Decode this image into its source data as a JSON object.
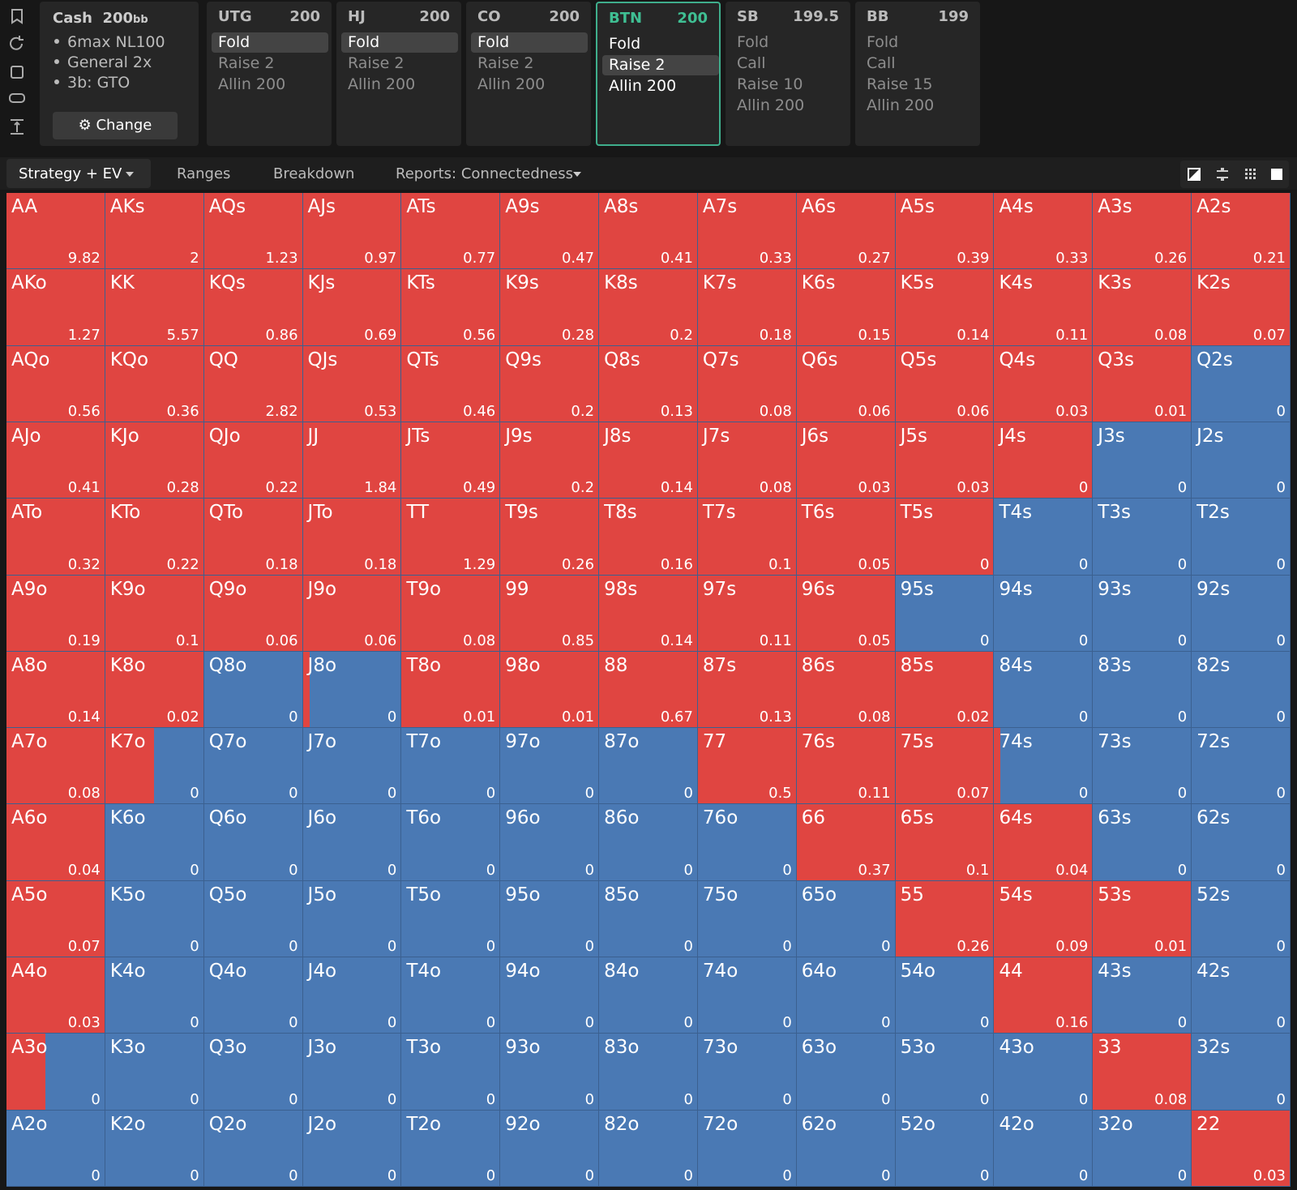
{
  "sidebar": {
    "title": "Cash",
    "stack": 200,
    "unit": "bb",
    "bullets": [
      "6max NL100",
      "General 2x",
      "3b: GTO"
    ],
    "button": "Change"
  },
  "positions": [
    {
      "name": "UTG",
      "stack": 200,
      "actions": [
        "Fold",
        "Raise 2",
        "Allin 200"
      ],
      "selected": 0
    },
    {
      "name": "HJ",
      "stack": 200,
      "actions": [
        "Fold",
        "Raise 2",
        "Allin 200"
      ],
      "selected": 0
    },
    {
      "name": "CO",
      "stack": 200,
      "actions": [
        "Fold",
        "Raise 2",
        "Allin 200"
      ],
      "selected": 0
    },
    {
      "name": "BTN",
      "stack": 200,
      "actions": [
        "Fold",
        "Raise 2",
        "Allin 200"
      ],
      "selected": 1,
      "active": true
    },
    {
      "name": "SB",
      "stack": 199.5,
      "actions": [
        "Fold",
        "Call",
        "Raise 10",
        "Allin 200"
      ]
    },
    {
      "name": "BB",
      "stack": 199,
      "actions": [
        "Fold",
        "Call",
        "Raise 15",
        "Allin 200"
      ]
    }
  ],
  "tabs": {
    "items": [
      "Strategy + EV",
      "Ranges",
      "Breakdown",
      "Reports: Connectedness"
    ],
    "active": 0
  },
  "grid": {
    "colors": {
      "raise": "#e04541",
      "fold": "#4a79b4"
    },
    "rows": [
      [
        {
          "hand": "AA",
          "ev": 9.82,
          "raise": 1
        },
        {
          "hand": "AKs",
          "ev": 2,
          "raise": 1
        },
        {
          "hand": "AQs",
          "ev": 1.23,
          "raise": 1
        },
        {
          "hand": "AJs",
          "ev": 0.97,
          "raise": 1
        },
        {
          "hand": "ATs",
          "ev": 0.77,
          "raise": 1
        },
        {
          "hand": "A9s",
          "ev": 0.47,
          "raise": 1
        },
        {
          "hand": "A8s",
          "ev": 0.41,
          "raise": 1
        },
        {
          "hand": "A7s",
          "ev": 0.33,
          "raise": 1
        },
        {
          "hand": "A6s",
          "ev": 0.27,
          "raise": 1
        },
        {
          "hand": "A5s",
          "ev": 0.39,
          "raise": 1
        },
        {
          "hand": "A4s",
          "ev": 0.33,
          "raise": 1
        },
        {
          "hand": "A3s",
          "ev": 0.26,
          "raise": 1
        },
        {
          "hand": "A2s",
          "ev": 0.21,
          "raise": 1
        }
      ],
      [
        {
          "hand": "AKo",
          "ev": 1.27,
          "raise": 1
        },
        {
          "hand": "KK",
          "ev": 5.57,
          "raise": 1
        },
        {
          "hand": "KQs",
          "ev": 0.86,
          "raise": 1
        },
        {
          "hand": "KJs",
          "ev": 0.69,
          "raise": 1
        },
        {
          "hand": "KTs",
          "ev": 0.56,
          "raise": 1
        },
        {
          "hand": "K9s",
          "ev": 0.28,
          "raise": 1
        },
        {
          "hand": "K8s",
          "ev": 0.2,
          "raise": 1
        },
        {
          "hand": "K7s",
          "ev": 0.18,
          "raise": 1
        },
        {
          "hand": "K6s",
          "ev": 0.15,
          "raise": 1
        },
        {
          "hand": "K5s",
          "ev": 0.14,
          "raise": 1
        },
        {
          "hand": "K4s",
          "ev": 0.11,
          "raise": 1
        },
        {
          "hand": "K3s",
          "ev": 0.08,
          "raise": 1
        },
        {
          "hand": "K2s",
          "ev": 0.07,
          "raise": 1
        }
      ],
      [
        {
          "hand": "AQo",
          "ev": 0.56,
          "raise": 1
        },
        {
          "hand": "KQo",
          "ev": 0.36,
          "raise": 1
        },
        {
          "hand": "QQ",
          "ev": 2.82,
          "raise": 1
        },
        {
          "hand": "QJs",
          "ev": 0.53,
          "raise": 1
        },
        {
          "hand": "QTs",
          "ev": 0.46,
          "raise": 1
        },
        {
          "hand": "Q9s",
          "ev": 0.2,
          "raise": 1
        },
        {
          "hand": "Q8s",
          "ev": 0.13,
          "raise": 1
        },
        {
          "hand": "Q7s",
          "ev": 0.08,
          "raise": 1
        },
        {
          "hand": "Q6s",
          "ev": 0.06,
          "raise": 1
        },
        {
          "hand": "Q5s",
          "ev": 0.06,
          "raise": 1
        },
        {
          "hand": "Q4s",
          "ev": 0.03,
          "raise": 1
        },
        {
          "hand": "Q3s",
          "ev": 0.01,
          "raise": 1
        },
        {
          "hand": "Q2s",
          "ev": 0,
          "raise": 0
        }
      ],
      [
        {
          "hand": "AJo",
          "ev": 0.41,
          "raise": 1
        },
        {
          "hand": "KJo",
          "ev": 0.28,
          "raise": 1
        },
        {
          "hand": "QJo",
          "ev": 0.22,
          "raise": 1
        },
        {
          "hand": "JJ",
          "ev": 1.84,
          "raise": 1
        },
        {
          "hand": "JTs",
          "ev": 0.49,
          "raise": 1
        },
        {
          "hand": "J9s",
          "ev": 0.2,
          "raise": 1
        },
        {
          "hand": "J8s",
          "ev": 0.14,
          "raise": 1
        },
        {
          "hand": "J7s",
          "ev": 0.08,
          "raise": 1
        },
        {
          "hand": "J6s",
          "ev": 0.03,
          "raise": 1
        },
        {
          "hand": "J5s",
          "ev": 0.03,
          "raise": 1
        },
        {
          "hand": "J4s",
          "ev": 0,
          "raise": 1
        },
        {
          "hand": "J3s",
          "ev": 0,
          "raise": 0
        },
        {
          "hand": "J2s",
          "ev": 0,
          "raise": 0
        }
      ],
      [
        {
          "hand": "ATo",
          "ev": 0.32,
          "raise": 1
        },
        {
          "hand": "KTo",
          "ev": 0.22,
          "raise": 1
        },
        {
          "hand": "QTo",
          "ev": 0.18,
          "raise": 1
        },
        {
          "hand": "JTo",
          "ev": 0.18,
          "raise": 1
        },
        {
          "hand": "TT",
          "ev": 1.29,
          "raise": 1
        },
        {
          "hand": "T9s",
          "ev": 0.26,
          "raise": 1
        },
        {
          "hand": "T8s",
          "ev": 0.16,
          "raise": 1
        },
        {
          "hand": "T7s",
          "ev": 0.1,
          "raise": 1
        },
        {
          "hand": "T6s",
          "ev": 0.05,
          "raise": 1
        },
        {
          "hand": "T5s",
          "ev": 0,
          "raise": 1
        },
        {
          "hand": "T4s",
          "ev": 0,
          "raise": 0
        },
        {
          "hand": "T3s",
          "ev": 0,
          "raise": 0
        },
        {
          "hand": "T2s",
          "ev": 0,
          "raise": 0
        }
      ],
      [
        {
          "hand": "A9o",
          "ev": 0.19,
          "raise": 1
        },
        {
          "hand": "K9o",
          "ev": 0.1,
          "raise": 1
        },
        {
          "hand": "Q9o",
          "ev": 0.06,
          "raise": 1
        },
        {
          "hand": "J9o",
          "ev": 0.06,
          "raise": 1
        },
        {
          "hand": "T9o",
          "ev": 0.08,
          "raise": 1
        },
        {
          "hand": "99",
          "ev": 0.85,
          "raise": 1
        },
        {
          "hand": "98s",
          "ev": 0.14,
          "raise": 1
        },
        {
          "hand": "97s",
          "ev": 0.11,
          "raise": 1
        },
        {
          "hand": "96s",
          "ev": 0.05,
          "raise": 1
        },
        {
          "hand": "95s",
          "ev": 0,
          "raise": 0
        },
        {
          "hand": "94s",
          "ev": 0,
          "raise": 0
        },
        {
          "hand": "93s",
          "ev": 0,
          "raise": 0
        },
        {
          "hand": "92s",
          "ev": 0,
          "raise": 0
        }
      ],
      [
        {
          "hand": "A8o",
          "ev": 0.14,
          "raise": 1
        },
        {
          "hand": "K8o",
          "ev": 0.02,
          "raise": 1
        },
        {
          "hand": "Q8o",
          "ev": 0,
          "raise": 0
        },
        {
          "hand": "J8o",
          "ev": 0,
          "raise": 0.07
        },
        {
          "hand": "T8o",
          "ev": 0.01,
          "raise": 1
        },
        {
          "hand": "98o",
          "ev": 0.01,
          "raise": 1
        },
        {
          "hand": "88",
          "ev": 0.67,
          "raise": 1
        },
        {
          "hand": "87s",
          "ev": 0.13,
          "raise": 1
        },
        {
          "hand": "86s",
          "ev": 0.08,
          "raise": 1
        },
        {
          "hand": "85s",
          "ev": 0.02,
          "raise": 1
        },
        {
          "hand": "84s",
          "ev": 0,
          "raise": 0
        },
        {
          "hand": "83s",
          "ev": 0,
          "raise": 0
        },
        {
          "hand": "82s",
          "ev": 0,
          "raise": 0
        }
      ],
      [
        {
          "hand": "A7o",
          "ev": 0.08,
          "raise": 1
        },
        {
          "hand": "K7o",
          "ev": 0,
          "raise": 0.5
        },
        {
          "hand": "Q7o",
          "ev": 0,
          "raise": 0
        },
        {
          "hand": "J7o",
          "ev": 0,
          "raise": 0
        },
        {
          "hand": "T7o",
          "ev": 0,
          "raise": 0
        },
        {
          "hand": "97o",
          "ev": 0,
          "raise": 0
        },
        {
          "hand": "87o",
          "ev": 0,
          "raise": 0
        },
        {
          "hand": "77",
          "ev": 0.5,
          "raise": 1
        },
        {
          "hand": "76s",
          "ev": 0.11,
          "raise": 1
        },
        {
          "hand": "75s",
          "ev": 0.07,
          "raise": 1
        },
        {
          "hand": "74s",
          "ev": 0,
          "raise": 0.06
        },
        {
          "hand": "73s",
          "ev": 0,
          "raise": 0
        },
        {
          "hand": "72s",
          "ev": 0,
          "raise": 0
        }
      ],
      [
        {
          "hand": "A6o",
          "ev": 0.04,
          "raise": 1
        },
        {
          "hand": "K6o",
          "ev": 0,
          "raise": 0
        },
        {
          "hand": "Q6o",
          "ev": 0,
          "raise": 0
        },
        {
          "hand": "J6o",
          "ev": 0,
          "raise": 0
        },
        {
          "hand": "T6o",
          "ev": 0,
          "raise": 0
        },
        {
          "hand": "96o",
          "ev": 0,
          "raise": 0
        },
        {
          "hand": "86o",
          "ev": 0,
          "raise": 0
        },
        {
          "hand": "76o",
          "ev": 0,
          "raise": 0
        },
        {
          "hand": "66",
          "ev": 0.37,
          "raise": 1
        },
        {
          "hand": "65s",
          "ev": 0.1,
          "raise": 1
        },
        {
          "hand": "64s",
          "ev": 0.04,
          "raise": 1
        },
        {
          "hand": "63s",
          "ev": 0,
          "raise": 0
        },
        {
          "hand": "62s",
          "ev": 0,
          "raise": 0
        }
      ],
      [
        {
          "hand": "A5o",
          "ev": 0.07,
          "raise": 1
        },
        {
          "hand": "K5o",
          "ev": 0,
          "raise": 0
        },
        {
          "hand": "Q5o",
          "ev": 0,
          "raise": 0
        },
        {
          "hand": "J5o",
          "ev": 0,
          "raise": 0
        },
        {
          "hand": "T5o",
          "ev": 0,
          "raise": 0
        },
        {
          "hand": "95o",
          "ev": 0,
          "raise": 0
        },
        {
          "hand": "85o",
          "ev": 0,
          "raise": 0
        },
        {
          "hand": "75o",
          "ev": 0,
          "raise": 0
        },
        {
          "hand": "65o",
          "ev": 0,
          "raise": 0
        },
        {
          "hand": "55",
          "ev": 0.26,
          "raise": 1
        },
        {
          "hand": "54s",
          "ev": 0.09,
          "raise": 1
        },
        {
          "hand": "53s",
          "ev": 0.01,
          "raise": 1
        },
        {
          "hand": "52s",
          "ev": 0,
          "raise": 0
        }
      ],
      [
        {
          "hand": "A4o",
          "ev": 0.03,
          "raise": 1
        },
        {
          "hand": "K4o",
          "ev": 0,
          "raise": 0
        },
        {
          "hand": "Q4o",
          "ev": 0,
          "raise": 0
        },
        {
          "hand": "J4o",
          "ev": 0,
          "raise": 0
        },
        {
          "hand": "T4o",
          "ev": 0,
          "raise": 0
        },
        {
          "hand": "94o",
          "ev": 0,
          "raise": 0
        },
        {
          "hand": "84o",
          "ev": 0,
          "raise": 0
        },
        {
          "hand": "74o",
          "ev": 0,
          "raise": 0
        },
        {
          "hand": "64o",
          "ev": 0,
          "raise": 0
        },
        {
          "hand": "54o",
          "ev": 0,
          "raise": 0
        },
        {
          "hand": "44",
          "ev": 0.16,
          "raise": 1
        },
        {
          "hand": "43s",
          "ev": 0,
          "raise": 0
        },
        {
          "hand": "42s",
          "ev": 0,
          "raise": 0
        }
      ],
      [
        {
          "hand": "A3o",
          "ev": 0,
          "raise": 0.4
        },
        {
          "hand": "K3o",
          "ev": 0,
          "raise": 0
        },
        {
          "hand": "Q3o",
          "ev": 0,
          "raise": 0
        },
        {
          "hand": "J3o",
          "ev": 0,
          "raise": 0
        },
        {
          "hand": "T3o",
          "ev": 0,
          "raise": 0
        },
        {
          "hand": "93o",
          "ev": 0,
          "raise": 0
        },
        {
          "hand": "83o",
          "ev": 0,
          "raise": 0
        },
        {
          "hand": "73o",
          "ev": 0,
          "raise": 0
        },
        {
          "hand": "63o",
          "ev": 0,
          "raise": 0
        },
        {
          "hand": "53o",
          "ev": 0,
          "raise": 0
        },
        {
          "hand": "43o",
          "ev": 0,
          "raise": 0
        },
        {
          "hand": "33",
          "ev": 0.08,
          "raise": 1
        },
        {
          "hand": "32s",
          "ev": 0,
          "raise": 0
        }
      ],
      [
        {
          "hand": "A2o",
          "ev": 0,
          "raise": 0
        },
        {
          "hand": "K2o",
          "ev": 0,
          "raise": 0
        },
        {
          "hand": "Q2o",
          "ev": 0,
          "raise": 0
        },
        {
          "hand": "J2o",
          "ev": 0,
          "raise": 0
        },
        {
          "hand": "T2o",
          "ev": 0,
          "raise": 0
        },
        {
          "hand": "92o",
          "ev": 0,
          "raise": 0
        },
        {
          "hand": "82o",
          "ev": 0,
          "raise": 0
        },
        {
          "hand": "72o",
          "ev": 0,
          "raise": 0
        },
        {
          "hand": "62o",
          "ev": 0,
          "raise": 0
        },
        {
          "hand": "52o",
          "ev": 0,
          "raise": 0
        },
        {
          "hand": "42o",
          "ev": 0,
          "raise": 0
        },
        {
          "hand": "32o",
          "ev": 0,
          "raise": 0
        },
        {
          "hand": "22",
          "ev": 0.03,
          "raise": 1
        }
      ]
    ]
  }
}
